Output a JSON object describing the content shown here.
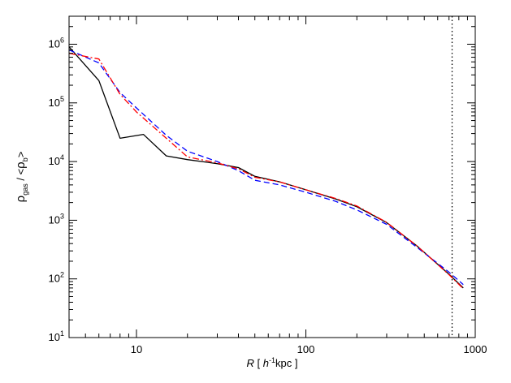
{
  "chart_data": {
    "type": "line",
    "xlabel": {
      "italic": "R",
      "bracket_open": " [ ",
      "unit_italic": "h",
      "unit_sup": "-1",
      "unit_rest": "kpc ]"
    },
    "ylabel": {
      "rho": "ρ",
      "gas_sub": "gas",
      "slash": " / <",
      "b_sub": "b",
      "close": ">"
    },
    "xscale": "log",
    "yscale": "log",
    "xlim": [
      4.0,
      1000
    ],
    "ylim": [
      10,
      3000000
    ],
    "x_ticks": [
      {
        "value": 10,
        "label": "10"
      },
      {
        "value": 100,
        "label": "100"
      },
      {
        "value": 1000,
        "label": "1000"
      }
    ],
    "y_ticks": [
      {
        "value": 10,
        "base": "10",
        "exp": "1"
      },
      {
        "value": 100,
        "base": "10",
        "exp": "2"
      },
      {
        "value": 1000,
        "base": "10",
        "exp": "3"
      },
      {
        "value": 10000,
        "base": "10",
        "exp": "4"
      },
      {
        "value": 100000,
        "base": "10",
        "exp": "5"
      },
      {
        "value": 1000000,
        "base": "10",
        "exp": "6"
      }
    ],
    "grid": false,
    "legend": "none",
    "series": [
      {
        "color": "#000000",
        "dash": "solid",
        "x": [
          4.0,
          6.0,
          8.0,
          11.0,
          15.0,
          20.0,
          30.0,
          40.0,
          50.0,
          70.0,
          100.0,
          150.0,
          200.0,
          300.0,
          450.0,
          700.0,
          850.0
        ],
        "y": [
          900000,
          240000,
          25000,
          29000,
          12500,
          10800,
          9200,
          7900,
          5600,
          4500,
          3300,
          2300,
          1700,
          910,
          370,
          120,
          70
        ]
      },
      {
        "color": "#0000ff",
        "dash": "dashed",
        "x": [
          4.0,
          6.0,
          8.0,
          10.0,
          15.0,
          20.0,
          30.0,
          40.0,
          50.0,
          70.0,
          100.0,
          150.0,
          200.0,
          300.0,
          450.0,
          700.0,
          850.0
        ],
        "y": [
          800000,
          480000,
          150000,
          82000,
          28000,
          15000,
          10000,
          7000,
          4800,
          4000,
          3000,
          2100,
          1500,
          850,
          350,
          130,
          80
        ]
      },
      {
        "color": "#ff0000",
        "dash": "dashdot",
        "x": [
          4.0,
          6.0,
          8.0,
          10.0,
          15.0,
          20.0,
          30.0,
          40.0,
          50.0,
          70.0,
          100.0,
          150.0,
          200.0,
          300.0,
          450.0,
          700.0,
          850.0
        ],
        "y": [
          700000,
          560000,
          140000,
          70000,
          25000,
          12000,
          9500,
          7500,
          5400,
          4500,
          3300,
          2350,
          1750,
          920,
          370,
          118,
          68
        ]
      }
    ],
    "reference_lines": [
      {
        "orientation": "vertical",
        "x": 730,
        "color": "#000000",
        "dash": "dotted"
      }
    ]
  }
}
